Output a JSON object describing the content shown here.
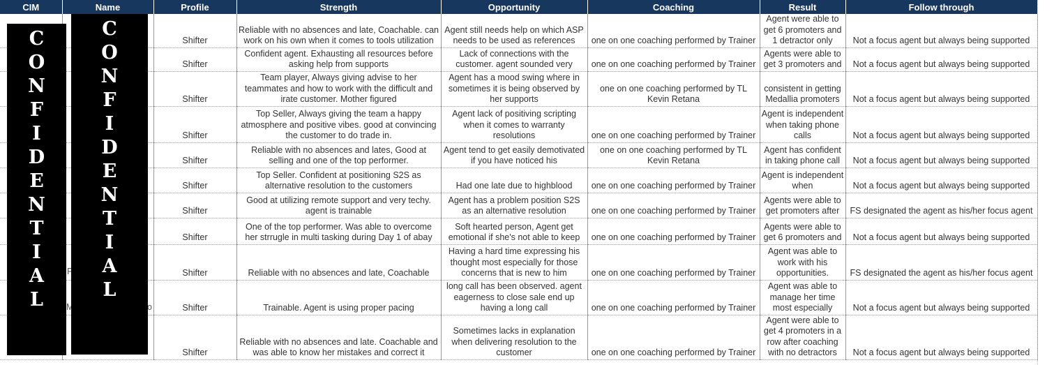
{
  "columns": [
    "CIM",
    "Name",
    "Profile",
    "Strength",
    "Opportunity",
    "Coaching",
    "Result",
    "Follow through"
  ],
  "rows": [
    {
      "profile": "Shifter",
      "strength": "Reliable with no absences and late, Coachable. can work on his own when it comes to tools utilization",
      "opportunity": "Agent still needs help on which ASP needs to be used as references",
      "coaching": "one on one coaching performed by Trainer",
      "result": "Agent were able to get 6 promoters and 1 detractor only",
      "follow": "Not a focus agent but always being supported"
    },
    {
      "profile": "Shifter",
      "strength": "Confident agent. Exhausting all resources before asking help from supports",
      "opportunity": "Lack of connections with the customer. agent sounded very",
      "coaching": "one on one coaching performed by Trainer",
      "result": "Agents were able to get 3 promoters and",
      "follow": "Not a focus agent but always being supported"
    },
    {
      "profile": "Shifter",
      "strength": "Team player, Always giving advise to her teammates and how to work with the difficult and irate customer. Mother figured",
      "opportunity": "Agent has a mood swing where in sometimes it is being observed by her supports",
      "coaching": "one on one coaching performed by TL Kevin Retana",
      "result": "consistent in getting Medallia promoters",
      "follow": "Not a focus agent but always being supported"
    },
    {
      "profile": "Shifter",
      "strength": "Top Seller, Always giving the team a happy atmosphere and positive vibes. good at convincing the customer to do trade in.",
      "opportunity": "Agent lack of positiving scripting when it comes to warranty resolutions",
      "coaching": "one on one coaching performed by Trainer",
      "result": "Agent is independent when taking phone calls",
      "follow": "Not a focus agent but always being supported"
    },
    {
      "profile": "Shifter",
      "strength": "Reliable with no absences and lates, Good at selling and one of the top performer.",
      "opportunity": "Agent tend to get easily demotivated if you have noticed his",
      "coaching": "one on one coaching performed by TL Kevin Retana",
      "result": "Agent has confident in taking phone call",
      "follow": "Not a focus agent but always being supported"
    },
    {
      "profile": "Shifter",
      "strength": "Top Seller. Confident at positioning S2S as alternative resolution to the customers",
      "opportunity": "Had one late due to highblood",
      "coaching": "one on one coaching performed by Trainer",
      "result": "Agent is independent when",
      "follow": "Not a focus agent but always being supported"
    },
    {
      "profile": "Shifter",
      "strength": "Good at utilizing remote support and very techy. agent is trainable",
      "opportunity": "Agent has a problem position S2S as an alternative resolution",
      "coaching": "one on one coaching performed by Trainer",
      "result": "Agents were able to get promoters after",
      "follow": "FS designated the agent as his/her focus agent"
    },
    {
      "profile": "Shifter",
      "strength": "One of the top performer. Was able to overcome her strrugle in multi tasking during Day 1 of abay",
      "opportunity": "Soft hearted person, Agent get emotional if she's not able to keep",
      "coaching": "one on one coaching performed by Trainer",
      "result": "Agents were able to get 6 promoters and",
      "follow": "Not a focus agent but always being supported"
    },
    {
      "profile": "Shifter",
      "strength": "Reliable with no absences and late, Coachable",
      "opportunity": "Having a hard time expressing his thought most especially for those concerns that is new to him",
      "coaching": "one on one coaching performed by Trainer",
      "result": "Agent was able to work with his opportunities.",
      "follow": "FS designated the agent as his/her focus agent"
    },
    {
      "profile": "Shifter",
      "strength": "Trainable. Agent is using proper pacing",
      "opportunity": "long call has been observed. agent eagerness to close sale end up having a long call",
      "coaching": "one on one coaching performed by Trainer",
      "result": "Agent was able to manage her time most especially",
      "follow": "Not a focus agent but always being supported"
    },
    {
      "profile": "Shifter",
      "strength": "Reliable with no absences and late. Coachable and was able to know her mistakes and correct it",
      "opportunity": "Sometimes lacks in explanation when delivering resolution to the customer",
      "coaching": "one on one coaching performed by Trainer",
      "result": "Agent were able to get 4 promoters in a row after coaching with no detractors",
      "follow": "Not a focus agent but always being supported"
    }
  ],
  "redaction": {
    "label": "CONFIDENTIAL",
    "cim_letters": [
      "C",
      "O",
      "N",
      "F",
      "I",
      "D",
      "E",
      "N",
      "T",
      "I",
      "A",
      "L"
    ],
    "name_letters": [
      "C",
      "O",
      "N",
      "F",
      "I",
      "D",
      "E",
      "N",
      "T",
      "I",
      "A",
      "L"
    ]
  },
  "stubs": [
    "F",
    "M",
    "o"
  ]
}
